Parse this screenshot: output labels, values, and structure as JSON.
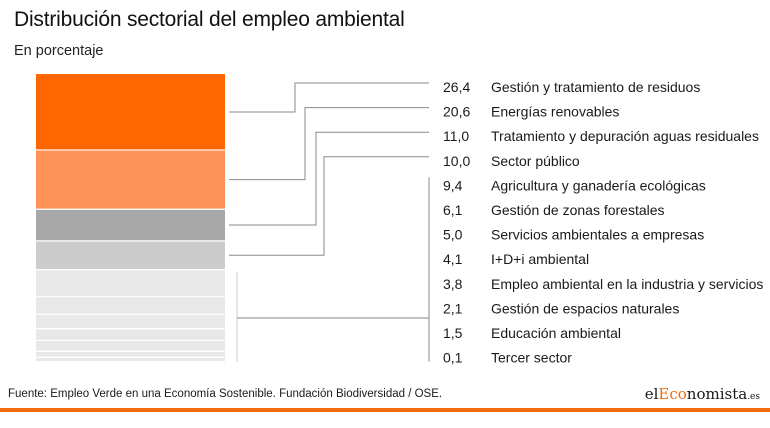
{
  "title": "Distribución sectorial del empleo ambiental",
  "subtitle": "En porcentaje",
  "source": "Fuente: Empleo Verde en una Economía Sostenible. Fundación Biodiversidad / OSE.",
  "logo": {
    "prefix": "el",
    "accent": "Eco",
    "rest": "nomista",
    "tld": ".es"
  },
  "colors": {
    "accent": "#f26b0f",
    "segments": [
      "#ff6600",
      "#ff9259",
      "#a8a8a8",
      "#cccccc",
      "#e8e8e8",
      "#e8e8e8",
      "#e8e8e8",
      "#e8e8e8",
      "#e8e8e8",
      "#e8e8e8",
      "#e8e8e8",
      "#e8e8e8"
    ]
  },
  "chart_data": {
    "type": "bar",
    "title": "Distribución sectorial del empleo ambiental",
    "subtitle": "En porcentaje",
    "stacked": true,
    "categories": [
      "Gestión y tratamiento de residuos",
      "Energías renovables",
      "Tratamiento y depuración aguas residuales",
      "Sector público",
      "Agricultura y ganadería ecológicas",
      "Gestión de zonas forestales",
      "Servicios ambientales a empresas",
      "I+D+i ambiental",
      "Empleo ambiental en la industria y servicios",
      "Gestión de espacios naturales",
      "Educación ambiental",
      "Tercer sector"
    ],
    "values": [
      26.4,
      20.6,
      11.0,
      10.0,
      9.4,
      6.1,
      5.0,
      4.1,
      3.8,
      2.1,
      1.5,
      0.1
    ],
    "value_labels": [
      "26,4",
      "20,6",
      "11,0",
      "10,0",
      "9,4",
      "6,1",
      "5,0",
      "4,1",
      "3,8",
      "2,1",
      "1,5",
      "0,1"
    ]
  }
}
